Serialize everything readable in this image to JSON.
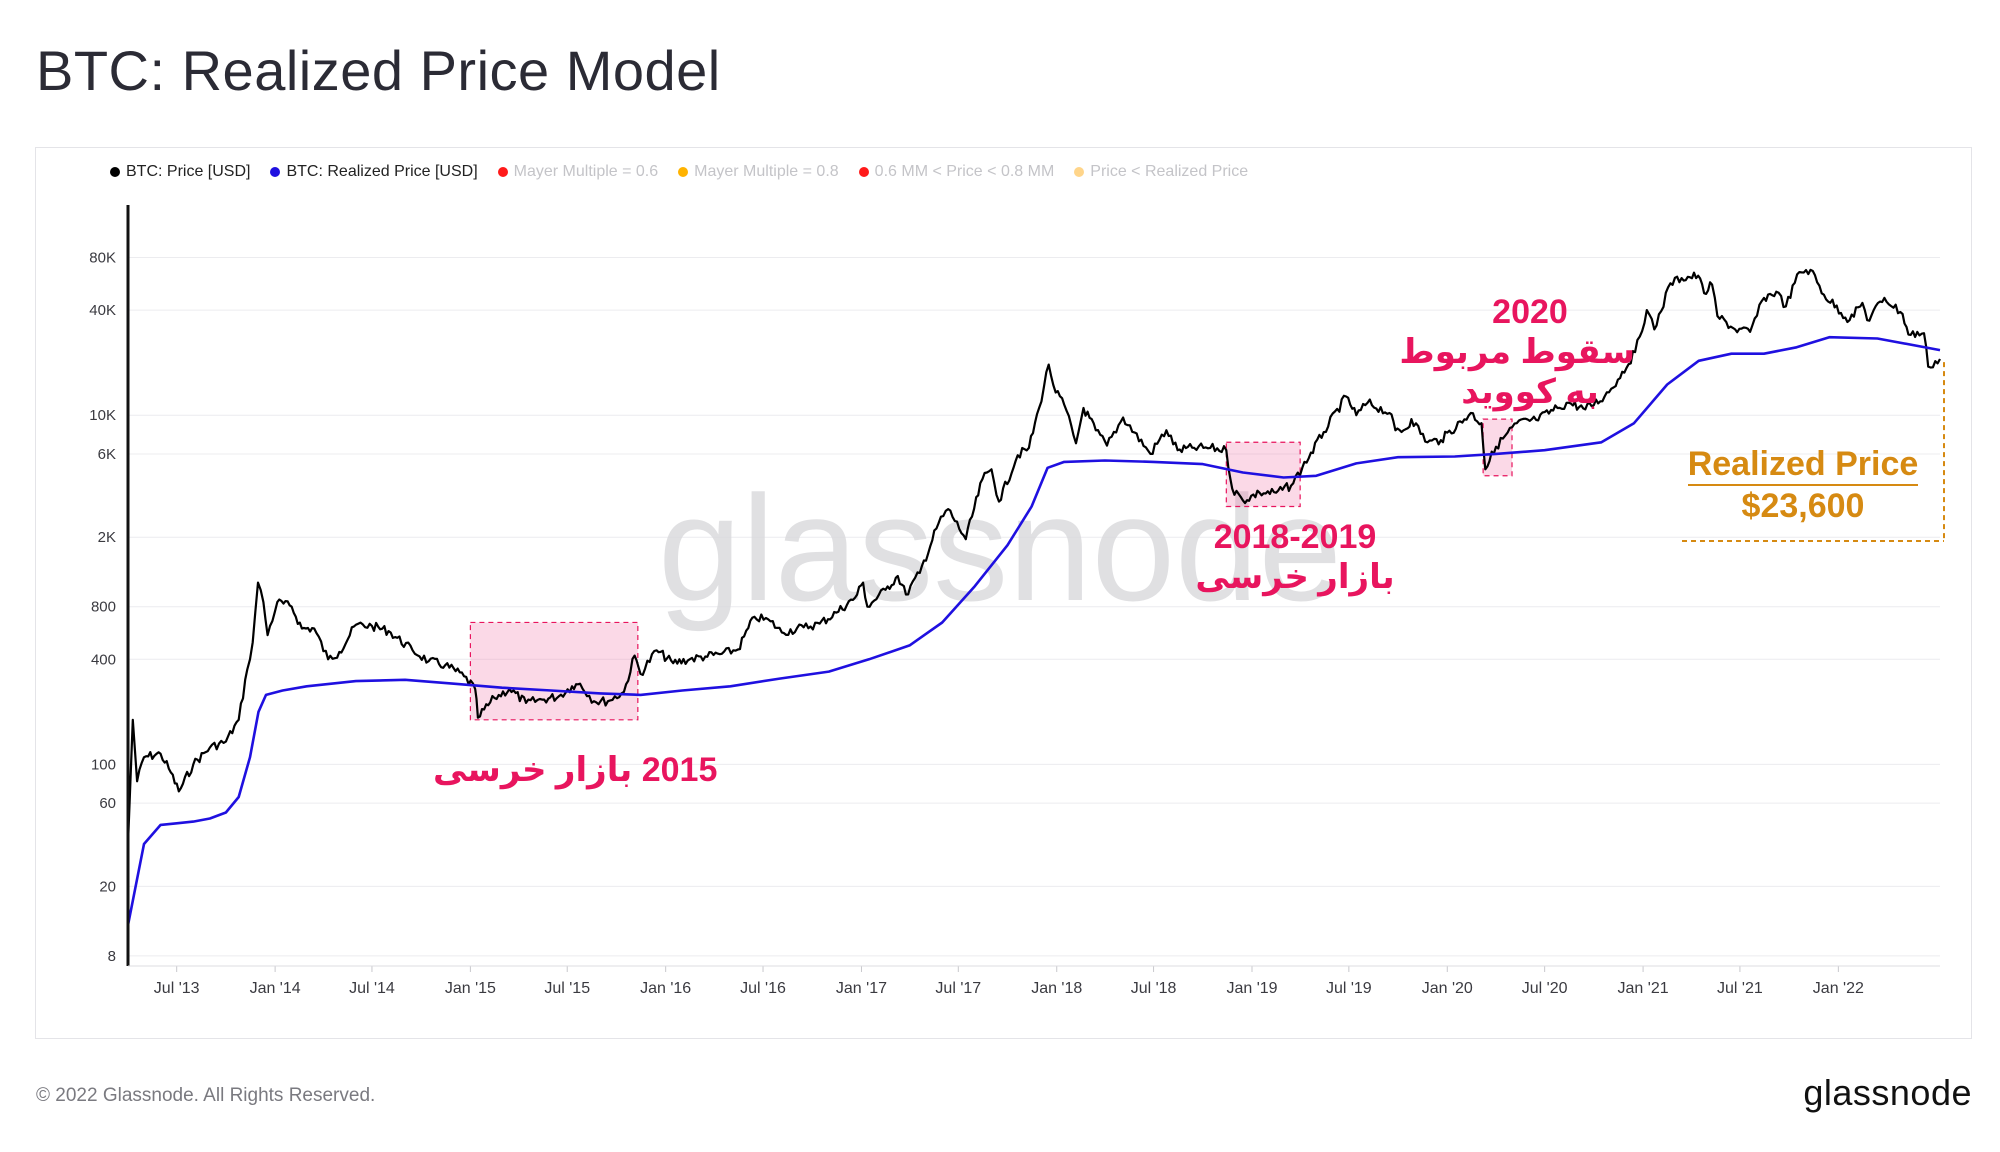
{
  "page": {
    "title": "BTC: Realized Price Model"
  },
  "legend": [
    {
      "label": "BTC: Price [USD]",
      "color": "#000000",
      "active": true
    },
    {
      "label": "BTC: Realized Price [USD]",
      "color": "#1f10e0",
      "active": true
    },
    {
      "label": "Mayer Multiple = 0.6",
      "color": "#ff1a1a",
      "active": false
    },
    {
      "label": "Mayer Multiple = 0.8",
      "color": "#ffb300",
      "active": false
    },
    {
      "label": "0.6 MM < Price < 0.8 MM",
      "color": "#ff1a1a",
      "active": false
    },
    {
      "label": "Price < Realized Price",
      "color": "#ffd58a",
      "active": false
    }
  ],
  "annotations": {
    "bear_2015": "2015 بازار خرسی",
    "bear_2018_year": "2018-2019",
    "bear_2018_text": "بازار خرسی",
    "covid_year": "2020",
    "covid_line1": "سقوط مربوط",
    "covid_line2": "به کووید",
    "realized_label": "Realized Price",
    "realized_value": "$23,600"
  },
  "watermark": "glassnode",
  "footer": {
    "copyright": "© 2022 Glassnode. All Rights Reserved.",
    "logo": "glassnode"
  },
  "colors": {
    "price": "#000000",
    "realized": "#1f10e0",
    "highlight": "#e8155e",
    "realized_accent": "#d68a12"
  },
  "chart_data": {
    "type": "line",
    "title": "BTC: Realized Price Model",
    "y_scale": "log",
    "ylim": [
      7,
      160000
    ],
    "xlim": [
      "2013-04-01",
      "2022-07-10"
    ],
    "y_ticks": [
      {
        "value": 8,
        "label": "8"
      },
      {
        "value": 20,
        "label": "20"
      },
      {
        "value": 60,
        "label": "60"
      },
      {
        "value": 100,
        "label": "100"
      },
      {
        "value": 400,
        "label": "400"
      },
      {
        "value": 800,
        "label": "800"
      },
      {
        "value": 2000,
        "label": "2K"
      },
      {
        "value": 6000,
        "label": "6K"
      },
      {
        "value": 10000,
        "label": "10K"
      },
      {
        "value": 40000,
        "label": "40K"
      },
      {
        "value": 80000,
        "label": "80K"
      }
    ],
    "x_ticks": [
      {
        "date": "2013-07-01",
        "label": "Jul '13"
      },
      {
        "date": "2014-01-01",
        "label": "Jan '14"
      },
      {
        "date": "2014-07-01",
        "label": "Jul '14"
      },
      {
        "date": "2015-01-01",
        "label": "Jan '15"
      },
      {
        "date": "2015-07-01",
        "label": "Jul '15"
      },
      {
        "date": "2016-01-01",
        "label": "Jan '16"
      },
      {
        "date": "2016-07-01",
        "label": "Jul '16"
      },
      {
        "date": "2017-01-01",
        "label": "Jan '17"
      },
      {
        "date": "2017-07-01",
        "label": "Jul '17"
      },
      {
        "date": "2018-01-01",
        "label": "Jan '18"
      },
      {
        "date": "2018-07-01",
        "label": "Jul '18"
      },
      {
        "date": "2019-01-01",
        "label": "Jan '19"
      },
      {
        "date": "2019-07-01",
        "label": "Jul '19"
      },
      {
        "date": "2020-01-01",
        "label": "Jan '20"
      },
      {
        "date": "2020-07-01",
        "label": "Jul '20"
      },
      {
        "date": "2021-01-01",
        "label": "Jan '21"
      },
      {
        "date": "2021-07-01",
        "label": "Jul '21"
      },
      {
        "date": "2022-01-01",
        "label": "Jan '22"
      }
    ],
    "series": [
      {
        "name": "BTC: Price [USD]",
        "color": "#000000",
        "points": [
          [
            "2013-04-01",
            35
          ],
          [
            "2013-04-10",
            180
          ],
          [
            "2013-04-18",
            80
          ],
          [
            "2013-05-01",
            110
          ],
          [
            "2013-06-01",
            115
          ],
          [
            "2013-06-20",
            90
          ],
          [
            "2013-07-05",
            70
          ],
          [
            "2013-08-01",
            100
          ],
          [
            "2013-09-01",
            125
          ],
          [
            "2013-10-01",
            135
          ],
          [
            "2013-10-25",
            180
          ],
          [
            "2013-11-10",
            350
          ],
          [
            "2013-11-20",
            500
          ],
          [
            "2013-11-30",
            1100
          ],
          [
            "2013-12-10",
            850
          ],
          [
            "2013-12-18",
            550
          ],
          [
            "2014-01-05",
            850
          ],
          [
            "2014-02-01",
            800
          ],
          [
            "2014-02-20",
            600
          ],
          [
            "2014-03-15",
            600
          ],
          [
            "2014-04-10",
            400
          ],
          [
            "2014-05-01",
            440
          ],
          [
            "2014-06-01",
            630
          ],
          [
            "2014-07-01",
            620
          ],
          [
            "2014-08-01",
            580
          ],
          [
            "2014-09-15",
            450
          ],
          [
            "2014-10-15",
            390
          ],
          [
            "2014-11-15",
            370
          ],
          [
            "2014-12-20",
            320
          ],
          [
            "2015-01-10",
            270
          ],
          [
            "2015-01-15",
            185
          ],
          [
            "2015-02-15",
            240
          ],
          [
            "2015-03-15",
            270
          ],
          [
            "2015-04-15",
            225
          ],
          [
            "2015-05-15",
            235
          ],
          [
            "2015-06-15",
            245
          ],
          [
            "2015-07-10",
            280
          ],
          [
            "2015-07-25",
            290
          ],
          [
            "2015-08-20",
            230
          ],
          [
            "2015-09-15",
            230
          ],
          [
            "2015-10-15",
            260
          ],
          [
            "2015-11-04",
            420
          ],
          [
            "2015-11-15",
            330
          ],
          [
            "2015-12-15",
            450
          ],
          [
            "2016-01-15",
            380
          ],
          [
            "2016-02-15",
            400
          ],
          [
            "2016-03-15",
            415
          ],
          [
            "2016-04-15",
            430
          ],
          [
            "2016-05-15",
            455
          ],
          [
            "2016-06-15",
            700
          ],
          [
            "2016-07-15",
            660
          ],
          [
            "2016-08-05",
            570
          ],
          [
            "2016-09-15",
            610
          ],
          [
            "2016-10-15",
            640
          ],
          [
            "2016-11-15",
            740
          ],
          [
            "2016-12-20",
            900
          ],
          [
            "2017-01-04",
            1100
          ],
          [
            "2017-01-12",
            800
          ],
          [
            "2017-02-15",
            1000
          ],
          [
            "2017-03-10",
            1200
          ],
          [
            "2017-03-25",
            940
          ],
          [
            "2017-04-20",
            1250
          ],
          [
            "2017-05-25",
            2400
          ],
          [
            "2017-06-12",
            2900
          ],
          [
            "2017-07-15",
            1950
          ],
          [
            "2017-08-15",
            4300
          ],
          [
            "2017-09-01",
            4900
          ],
          [
            "2017-09-15",
            3200
          ],
          [
            "2017-10-20",
            5900
          ],
          [
            "2017-11-10",
            6500
          ],
          [
            "2017-11-29",
            11000
          ],
          [
            "2017-12-17",
            19500
          ],
          [
            "2017-12-30",
            13500
          ],
          [
            "2018-01-15",
            11500
          ],
          [
            "2018-02-06",
            6900
          ],
          [
            "2018-02-20",
            11000
          ],
          [
            "2018-03-15",
            8200
          ],
          [
            "2018-04-05",
            6700
          ],
          [
            "2018-05-05",
            9700
          ],
          [
            "2018-06-25",
            6000
          ],
          [
            "2018-07-25",
            8200
          ],
          [
            "2018-08-15",
            6300
          ],
          [
            "2018-09-15",
            6500
          ],
          [
            "2018-10-15",
            6500
          ],
          [
            "2018-11-14",
            6300
          ],
          [
            "2018-11-25",
            3800
          ],
          [
            "2018-12-15",
            3250
          ],
          [
            "2019-01-15",
            3600
          ],
          [
            "2019-02-15",
            3600
          ],
          [
            "2019-03-15",
            3950
          ],
          [
            "2019-04-05",
            5000
          ],
          [
            "2019-05-15",
            8000
          ],
          [
            "2019-06-26",
            12800
          ],
          [
            "2019-07-15",
            10000
          ],
          [
            "2019-08-05",
            11800
          ],
          [
            "2019-09-15",
            10300
          ],
          [
            "2019-09-26",
            8200
          ],
          [
            "2019-10-15",
            8300
          ],
          [
            "2019-10-26",
            9500
          ],
          [
            "2019-11-25",
            7000
          ],
          [
            "2019-12-20",
            7200
          ],
          [
            "2020-02-14",
            10300
          ],
          [
            "2020-03-05",
            9000
          ],
          [
            "2020-03-12",
            4900
          ],
          [
            "2020-04-01",
            6600
          ],
          [
            "2020-05-10",
            9000
          ],
          [
            "2020-06-15",
            9400
          ],
          [
            "2020-07-25",
            11000
          ],
          [
            "2020-08-15",
            11800
          ],
          [
            "2020-09-15",
            10800
          ],
          [
            "2020-10-21",
            12800
          ],
          [
            "2020-11-15",
            16000
          ],
          [
            "2020-12-17",
            23000
          ],
          [
            "2021-01-08",
            40000
          ],
          [
            "2021-01-22",
            31000
          ],
          [
            "2021-02-21",
            57000
          ],
          [
            "2021-03-14",
            61000
          ],
          [
            "2021-04-14",
            63000
          ],
          [
            "2021-04-25",
            50000
          ],
          [
            "2021-05-10",
            56000
          ],
          [
            "2021-05-20",
            37000
          ],
          [
            "2021-06-22",
            31000
          ],
          [
            "2021-07-20",
            30000
          ],
          [
            "2021-08-15",
            47000
          ],
          [
            "2021-09-07",
            51000
          ],
          [
            "2021-09-25",
            42000
          ],
          [
            "2021-10-20",
            66000
          ],
          [
            "2021-11-10",
            68000
          ],
          [
            "2021-12-05",
            49000
          ],
          [
            "2022-01-22",
            35000
          ],
          [
            "2022-02-15",
            44000
          ],
          [
            "2022-02-24",
            35000
          ],
          [
            "2022-03-28",
            47000
          ],
          [
            "2022-05-01",
            38000
          ],
          [
            "2022-05-12",
            29000
          ],
          [
            "2022-06-10",
            29500
          ],
          [
            "2022-06-18",
            19000
          ],
          [
            "2022-07-10",
            21000
          ]
        ]
      },
      {
        "name": "BTC: Realized Price [USD]",
        "color": "#1f10e0",
        "points": [
          [
            "2013-04-01",
            12
          ],
          [
            "2013-05-01",
            35
          ],
          [
            "2013-06-01",
            45
          ],
          [
            "2013-07-01",
            46
          ],
          [
            "2013-08-01",
            47
          ],
          [
            "2013-09-01",
            49
          ],
          [
            "2013-10-01",
            53
          ],
          [
            "2013-10-25",
            65
          ],
          [
            "2013-11-15",
            110
          ],
          [
            "2013-12-01",
            200
          ],
          [
            "2013-12-15",
            250
          ],
          [
            "2014-01-15",
            265
          ],
          [
            "2014-03-01",
            280
          ],
          [
            "2014-06-01",
            300
          ],
          [
            "2014-09-01",
            305
          ],
          [
            "2014-12-01",
            290
          ],
          [
            "2015-03-01",
            275
          ],
          [
            "2015-06-01",
            265
          ],
          [
            "2015-09-01",
            255
          ],
          [
            "2015-11-15",
            250
          ],
          [
            "2016-02-01",
            265
          ],
          [
            "2016-05-01",
            280
          ],
          [
            "2016-08-01",
            310
          ],
          [
            "2016-11-01",
            340
          ],
          [
            "2017-01-15",
            400
          ],
          [
            "2017-04-01",
            480
          ],
          [
            "2017-06-01",
            650
          ],
          [
            "2017-08-01",
            1050
          ],
          [
            "2017-10-01",
            1800
          ],
          [
            "2017-11-15",
            3000
          ],
          [
            "2017-12-15",
            5000
          ],
          [
            "2018-01-15",
            5400
          ],
          [
            "2018-04-01",
            5500
          ],
          [
            "2018-07-01",
            5400
          ],
          [
            "2018-10-01",
            5250
          ],
          [
            "2018-12-15",
            4700
          ],
          [
            "2019-03-01",
            4400
          ],
          [
            "2019-05-01",
            4500
          ],
          [
            "2019-07-15",
            5300
          ],
          [
            "2019-10-01",
            5750
          ],
          [
            "2020-01-15",
            5800
          ],
          [
            "2020-04-01",
            6000
          ],
          [
            "2020-07-01",
            6300
          ],
          [
            "2020-10-15",
            7000
          ],
          [
            "2020-12-15",
            9000
          ],
          [
            "2021-02-15",
            15000
          ],
          [
            "2021-04-15",
            20500
          ],
          [
            "2021-06-15",
            22500
          ],
          [
            "2021-08-15",
            22500
          ],
          [
            "2021-10-15",
            24500
          ],
          [
            "2021-12-15",
            28000
          ],
          [
            "2022-03-15",
            27500
          ],
          [
            "2022-07-10",
            23600
          ]
        ]
      }
    ],
    "highlight_regions": [
      {
        "label": "bear_2015",
        "x": [
          "2015-01-01",
          "2015-11-10"
        ],
        "y": [
          180,
          650
        ]
      },
      {
        "label": "bear_2018",
        "x": [
          "2018-11-14",
          "2019-04-01"
        ],
        "y": [
          3000,
          7000
        ]
      },
      {
        "label": "covid_2020",
        "x": [
          "2020-03-08",
          "2020-05-01"
        ],
        "y": [
          4500,
          9500
        ]
      }
    ]
  }
}
